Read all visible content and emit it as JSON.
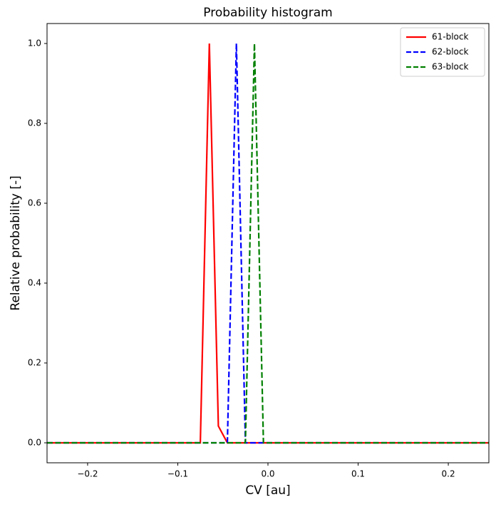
{
  "chart_data": {
    "type": "line",
    "title": "Probability histogram",
    "x_label": "CV [au]",
    "y_label": "Relative probability [-]",
    "x": [
      -0.245,
      -0.085,
      -0.075,
      -0.065,
      -0.055,
      -0.045,
      -0.035,
      -0.025,
      -0.015,
      -0.005,
      0.005,
      0.245
    ],
    "series": [
      {
        "name": "61-block",
        "color": "#ff0000",
        "linestyle": "solid",
        "values": [
          0,
          0,
          0,
          1,
          0.042,
          0,
          0,
          0,
          0,
          0,
          0,
          0
        ]
      },
      {
        "name": "62-block",
        "color": "#0000ff",
        "linestyle": "dashed",
        "values": [
          0,
          0,
          0,
          0,
          0,
          0,
          1,
          0,
          0,
          0,
          0,
          0
        ]
      },
      {
        "name": "63-block",
        "color": "#008000",
        "linestyle": "dashed",
        "values": [
          0,
          0,
          0,
          0,
          0,
          0,
          0,
          0,
          1,
          0,
          0,
          0
        ]
      }
    ],
    "xlim": [
      -0.245,
      0.245
    ],
    "ylim": [
      -0.05,
      1.05
    ],
    "xticks": [
      {
        "value": -0.2,
        "label": "−0.2"
      },
      {
        "value": -0.1,
        "label": "−0.1"
      },
      {
        "value": 0,
        "label": "0.0"
      },
      0.1,
      0.2
    ],
    "yticks": [
      {
        "value": 0,
        "label": "0.0"
      },
      0.2,
      0.4,
      0.6,
      0.8,
      {
        "value": 1,
        "label": "1.0"
      }
    ],
    "grid": false,
    "legend": "upper-right"
  }
}
